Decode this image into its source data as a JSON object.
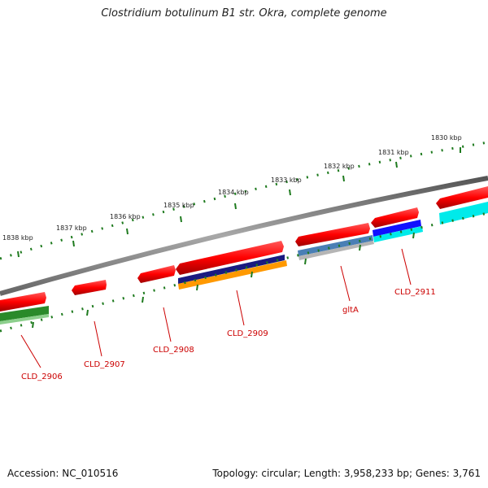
{
  "title": "Clostridium botulinum B1 str. Okra, complete genome",
  "footer": {
    "accession": "Accession: NC_010516",
    "summary": "Topology: circular; Length: 3,958,233 bp; Genes: 3,761"
  },
  "scale_labels": [
    "1830 kbp",
    "1831 kbp",
    "1832 kbp",
    "1833 kbp",
    "1834 kbp",
    "1835 kbp",
    "1836 kbp",
    "1837 kbp",
    "1838 kbp"
  ],
  "gene_labels": [
    "CLD_2906",
    "CLD_2907",
    "CLD_2908",
    "CLD_2909",
    "gltA",
    "CLD_2911"
  ],
  "colors": {
    "backbone": "#808080",
    "gene": "#ff0000",
    "tick": "#1e7a1e",
    "label": "#cc0000",
    "navy": "#1a1a80",
    "orange": "#ff9900",
    "steelblue": "#4a7fb5",
    "gray": "#b0b0b0",
    "blue": "#1010ff",
    "cyan": "#00ffff",
    "green": "#2a8a2a"
  }
}
